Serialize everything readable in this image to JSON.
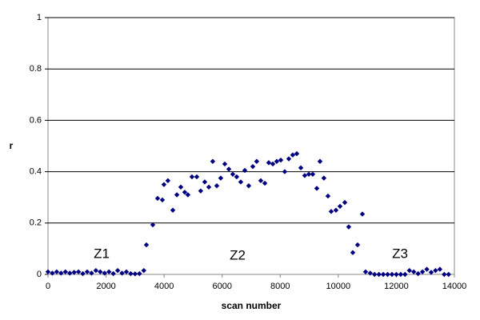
{
  "chart_data": {
    "type": "scatter",
    "xlabel": "scan number",
    "ylabel": "r",
    "annotations": [
      "Z1",
      "Z2",
      "Z3"
    ],
    "series": [
      {
        "name": null,
        "color": "#000080",
        "x": [
          0,
          150,
          300,
          450,
          600,
          750,
          900,
          1050,
          1200,
          1350,
          1500,
          1650,
          1800,
          1950,
          2100,
          2250,
          2400,
          2550,
          2700,
          2850,
          3000,
          3150,
          3300,
          3390,
          3610,
          3775,
          3940,
          3995,
          4130,
          4300,
          4440,
          4575,
          4710,
          4820,
          4960,
          5125,
          5260,
          5400,
          5540,
          5675,
          5815,
          5950,
          6090,
          6230,
          6365,
          6500,
          6640,
          6780,
          6915,
          7055,
          7190,
          7330,
          7470,
          7605,
          7745,
          7880,
          8020,
          8155,
          8295,
          8430,
          8570,
          8710,
          8845,
          8985,
          9120,
          9260,
          9370,
          9505,
          9645,
          9755,
          9920,
          10060,
          10225,
          10360,
          10500,
          10665,
          10830,
          10940,
          11100,
          11250,
          11400,
          11550,
          11700,
          11850,
          12000,
          12150,
          12300,
          12450,
          12600,
          12750,
          12900,
          13050,
          13200,
          13350,
          13500,
          13650,
          13800
        ],
        "values": [
          0.01,
          0.005,
          0.01,
          0.005,
          0.01,
          0.005,
          0.008,
          0.01,
          0.003,
          0.01,
          0.005,
          0.015,
          0.01,
          0.005,
          0.01,
          0.003,
          0.015,
          0.005,
          0.01,
          0.003,
          0.002,
          0.003,
          0.015,
          0.115,
          0.193,
          0.296,
          0.29,
          0.35,
          0.365,
          0.25,
          0.31,
          0.34,
          0.32,
          0.31,
          0.38,
          0.38,
          0.325,
          0.36,
          0.34,
          0.44,
          0.345,
          0.375,
          0.43,
          0.41,
          0.39,
          0.38,
          0.36,
          0.405,
          0.345,
          0.42,
          0.44,
          0.365,
          0.355,
          0.435,
          0.43,
          0.44,
          0.445,
          0.4,
          0.45,
          0.465,
          0.47,
          0.415,
          0.385,
          0.39,
          0.39,
          0.335,
          0.44,
          0.375,
          0.305,
          0.245,
          0.25,
          0.265,
          0.28,
          0.185,
          0.085,
          0.115,
          0.235,
          0.01,
          0.005,
          0,
          0,
          0,
          0,
          0,
          0,
          0,
          0,
          0.015,
          0.01,
          0.003,
          0.01,
          0.02,
          0.008,
          0.015,
          0.02,
          0,
          0
        ]
      }
    ],
    "xlim": [
      0,
      14000
    ],
    "xticks": [
      0,
      2000,
      4000,
      6000,
      8000,
      10000,
      12000,
      14000
    ],
    "ylim": [
      0,
      1
    ],
    "yticks": [
      0,
      0.2,
      0.4,
      0.6,
      0.8,
      1
    ],
    "grid": true
  }
}
